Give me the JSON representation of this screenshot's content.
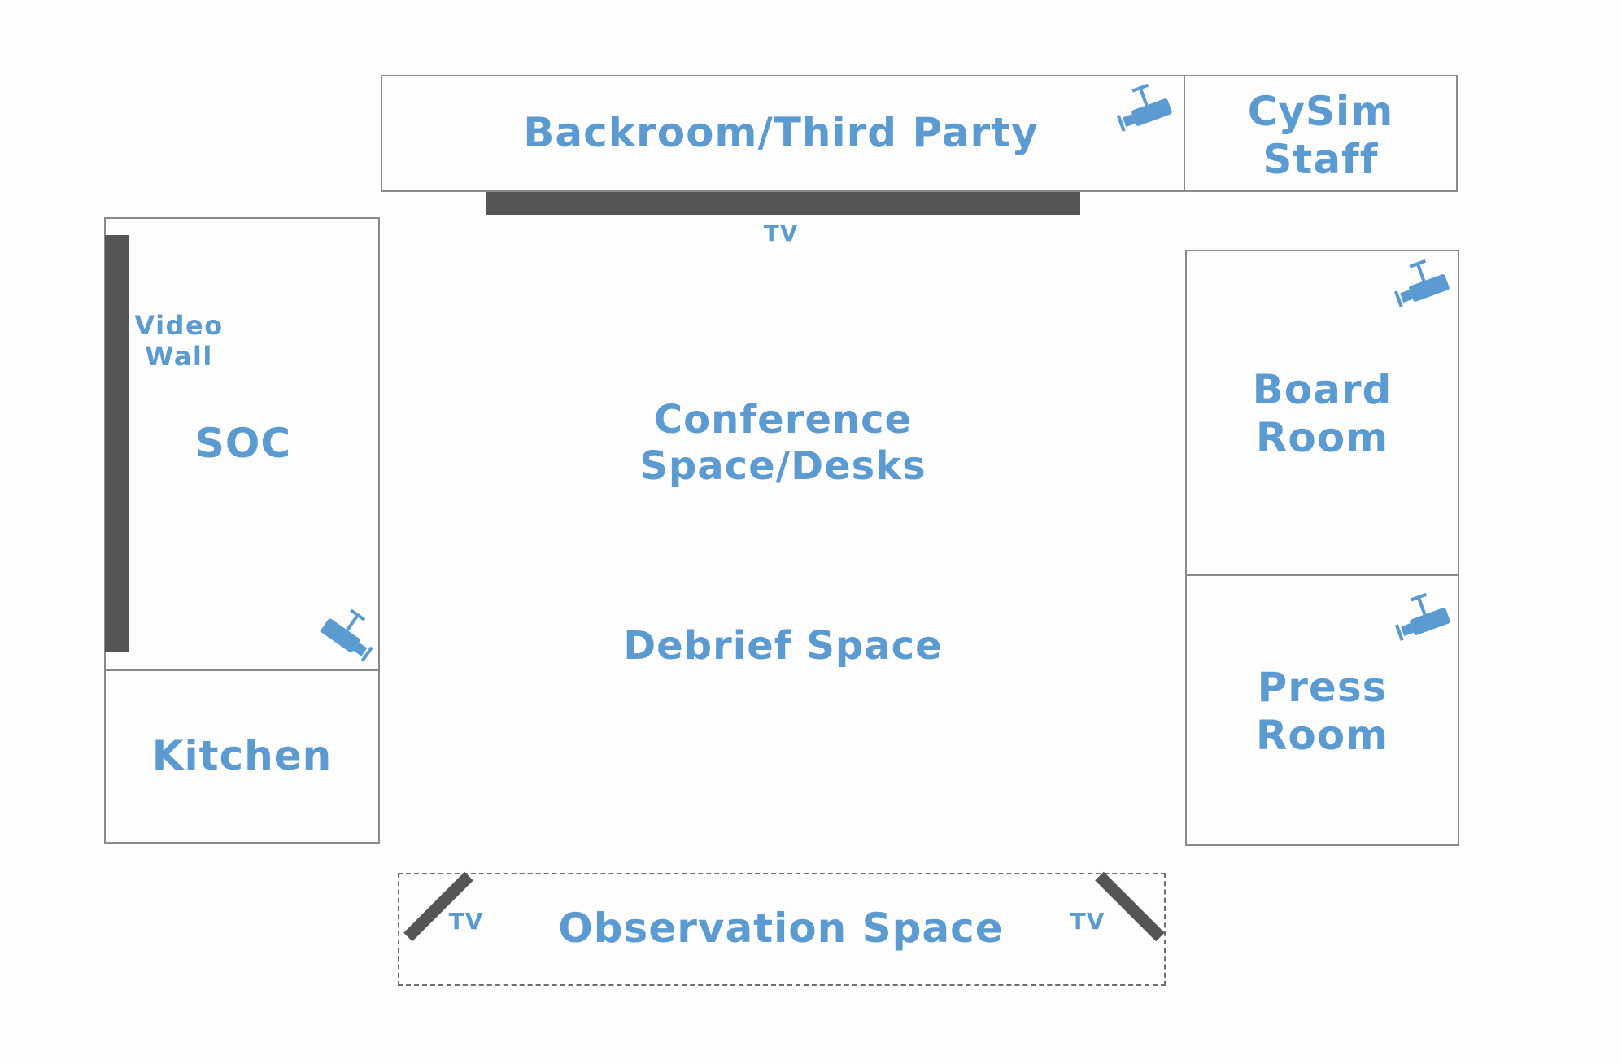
{
  "rooms": {
    "backroom": "Backroom/Third Party",
    "cysim": "CySim\nStaff",
    "soc": "SOC",
    "video_wall": "Video\nWall",
    "kitchen": "Kitchen",
    "conference": "Conference\nSpace/Desks",
    "debrief": "Debrief Space",
    "board_room": "Board\nRoom",
    "press_room": "Press\nRoom",
    "observation": "Observation Space"
  },
  "tv_labels": {
    "top": "TV",
    "observation_left": "TV",
    "observation_right": "TV"
  },
  "colors": {
    "label": "#5b9bd1",
    "wall": "#8a8a8a",
    "tv_bar": "#555555"
  },
  "icons": {
    "camera": "security-camera-icon"
  }
}
